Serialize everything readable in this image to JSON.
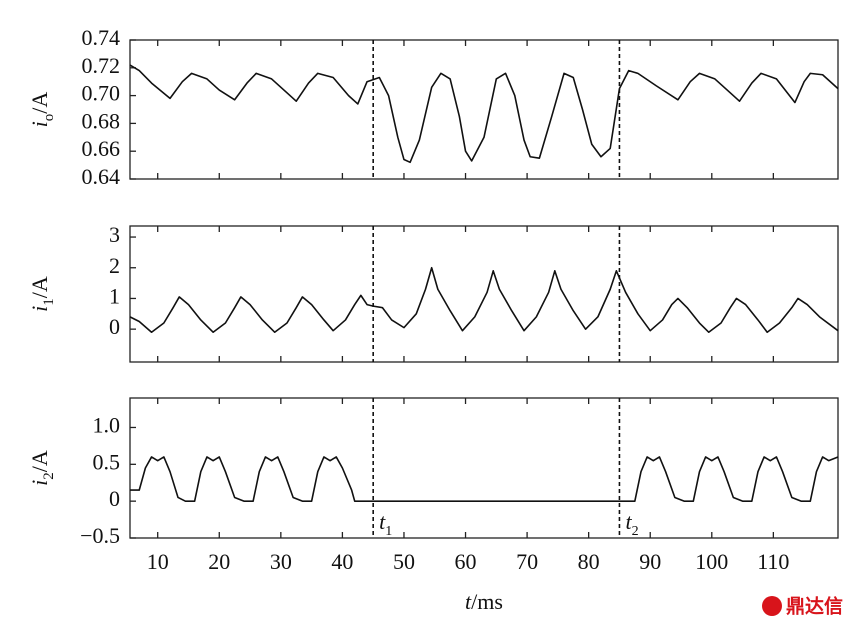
{
  "chart_data": [
    {
      "type": "line",
      "ylabel": {
        "symbol": "i",
        "subscript": "o",
        "unit": "/A"
      },
      "xlim": [
        5.5,
        120.5
      ],
      "xticks": [
        10,
        20,
        30,
        40,
        50,
        60,
        70,
        80,
        90,
        100,
        110
      ],
      "ylim": [
        0.64,
        0.74
      ],
      "yticks": [
        0.64,
        0.66,
        0.68,
        {
          "value": 0.7,
          "label": "0.70"
        },
        0.72,
        0.74
      ],
      "color": "#111",
      "x": [
        5.5,
        7,
        9,
        12,
        14,
        15.5,
        18,
        20,
        22.5,
        24.5,
        26,
        28.5,
        31,
        32.5,
        34.5,
        36,
        38.5,
        41,
        42.5,
        44,
        46,
        47.5,
        49,
        50,
        51,
        52.5,
        54.5,
        56,
        57.5,
        59,
        60,
        61,
        63,
        65,
        66.5,
        68,
        69.5,
        70.5,
        72,
        74,
        76,
        77.5,
        79,
        80.5,
        82,
        83.5,
        85,
        86.5,
        88,
        91,
        94.5,
        96.5,
        98,
        100.5,
        103,
        104.5,
        106.5,
        108,
        110.5,
        113.5,
        115,
        116,
        118,
        120.5
      ],
      "values": [
        0.722,
        0.718,
        0.709,
        0.698,
        0.71,
        0.716,
        0.712,
        0.704,
        0.697,
        0.709,
        0.716,
        0.712,
        0.702,
        0.696,
        0.709,
        0.716,
        0.713,
        0.7,
        0.694,
        0.71,
        0.713,
        0.7,
        0.67,
        0.654,
        0.652,
        0.668,
        0.706,
        0.716,
        0.712,
        0.685,
        0.66,
        0.653,
        0.67,
        0.712,
        0.716,
        0.7,
        0.668,
        0.656,
        0.655,
        0.685,
        0.716,
        0.713,
        0.69,
        0.665,
        0.656,
        0.662,
        0.705,
        0.718,
        0.716,
        0.707,
        0.697,
        0.71,
        0.716,
        0.712,
        0.702,
        0.696,
        0.709,
        0.716,
        0.712,
        0.695,
        0.71,
        0.716,
        0.715,
        0.705
      ]
    },
    {
      "type": "line",
      "ylabel": {
        "symbol": "i",
        "subscript": "1",
        "unit": "/A"
      },
      "xlim": [
        5.5,
        120.5
      ],
      "xticks": [
        10,
        20,
        30,
        40,
        50,
        60,
        70,
        80,
        90,
        100,
        110
      ],
      "ylim": [
        -1.07,
        3.36
      ],
      "yticks": [
        0,
        1,
        2,
        3
      ],
      "color": "#111",
      "x": [
        5.5,
        7,
        9,
        11,
        12.5,
        13.5,
        15,
        17,
        19,
        21,
        22.5,
        23.5,
        25,
        27,
        29,
        31,
        32.5,
        33.5,
        35,
        37,
        38.5,
        40.5,
        42,
        43,
        44,
        45,
        46.5,
        48,
        50,
        52,
        53.5,
        54.5,
        55.5,
        57.5,
        59.5,
        61.5,
        63.5,
        64.5,
        65.5,
        67.5,
        69.5,
        71.5,
        73.5,
        74.5,
        75.5,
        77.5,
        79.5,
        81.5,
        83.5,
        84.5,
        86,
        88,
        90,
        92,
        93.5,
        94.5,
        96,
        98,
        99.5,
        101.5,
        103,
        104,
        105.5,
        107.5,
        109,
        111,
        113,
        114,
        115.5,
        117.5,
        120.5
      ],
      "values": [
        0.4,
        0.25,
        -0.1,
        0.2,
        0.7,
        1.05,
        0.8,
        0.3,
        -0.1,
        0.2,
        0.7,
        1.05,
        0.8,
        0.3,
        -0.1,
        0.2,
        0.7,
        1.05,
        0.8,
        0.3,
        -0.05,
        0.3,
        0.8,
        1.1,
        0.8,
        0.75,
        0.7,
        0.3,
        0.05,
        0.5,
        1.3,
        2.0,
        1.3,
        0.6,
        -0.05,
        0.4,
        1.2,
        1.9,
        1.3,
        0.6,
        -0.05,
        0.4,
        1.2,
        1.9,
        1.3,
        0.6,
        0,
        0.4,
        1.3,
        1.9,
        1.2,
        0.5,
        -0.05,
        0.3,
        0.8,
        1.0,
        0.7,
        0.2,
        -0.1,
        0.2,
        0.7,
        1.0,
        0.8,
        0.3,
        -0.1,
        0.2,
        0.7,
        1.0,
        0.8,
        0.4,
        -0.05
      ]
    },
    {
      "type": "line",
      "ylabel": {
        "symbol": "i",
        "subscript": "2",
        "unit": "/A"
      },
      "xlabel": {
        "symbol": "t",
        "unit": "/ms"
      },
      "xlim": [
        5.5,
        120.5
      ],
      "xticks": [
        10,
        20,
        30,
        40,
        50,
        60,
        70,
        80,
        90,
        100,
        110
      ],
      "ylim": [
        -0.5,
        1.4
      ],
      "yticks": [
        {
          "value": -0.5,
          "label": "−0.5"
        },
        0,
        0.5,
        {
          "value": 1,
          "label": "1.0"
        }
      ],
      "color": "#111",
      "x": [
        5.5,
        7,
        8,
        9,
        10,
        11,
        12,
        13.3,
        14.5,
        16,
        17,
        18,
        19,
        20,
        21,
        22.5,
        24,
        25.5,
        26.5,
        27.5,
        28.5,
        29.5,
        30.5,
        32,
        33.5,
        35,
        36,
        37,
        38,
        39,
        40,
        41.5,
        42,
        85,
        87.5,
        88.5,
        89.5,
        90.5,
        91.5,
        92.5,
        94,
        95.5,
        97,
        98,
        99,
        100,
        101,
        102,
        103.5,
        105,
        106.5,
        107.5,
        108.5,
        109.5,
        110.5,
        111.5,
        113,
        114.5,
        116,
        117,
        118,
        119,
        120.5
      ],
      "values": [
        0.15,
        0.15,
        0.45,
        0.6,
        0.55,
        0.6,
        0.4,
        0.05,
        0,
        0,
        0.4,
        0.6,
        0.55,
        0.6,
        0.4,
        0.05,
        0,
        0,
        0.4,
        0.6,
        0.55,
        0.6,
        0.4,
        0.05,
        0,
        0,
        0.4,
        0.6,
        0.55,
        0.6,
        0.45,
        0.15,
        0,
        0,
        0,
        0.4,
        0.6,
        0.55,
        0.6,
        0.4,
        0.05,
        0,
        0,
        0.4,
        0.6,
        0.55,
        0.6,
        0.4,
        0.05,
        0,
        0,
        0.4,
        0.6,
        0.55,
        0.6,
        0.4,
        0.05,
        0,
        0,
        0.4,
        0.6,
        0.55,
        0.6
      ]
    }
  ],
  "events": [
    {
      "x": 45,
      "symbol": "t",
      "subscript": "1"
    },
    {
      "x": 85,
      "symbol": "t",
      "subscript": "2"
    }
  ],
  "watermark": "鼎达信"
}
